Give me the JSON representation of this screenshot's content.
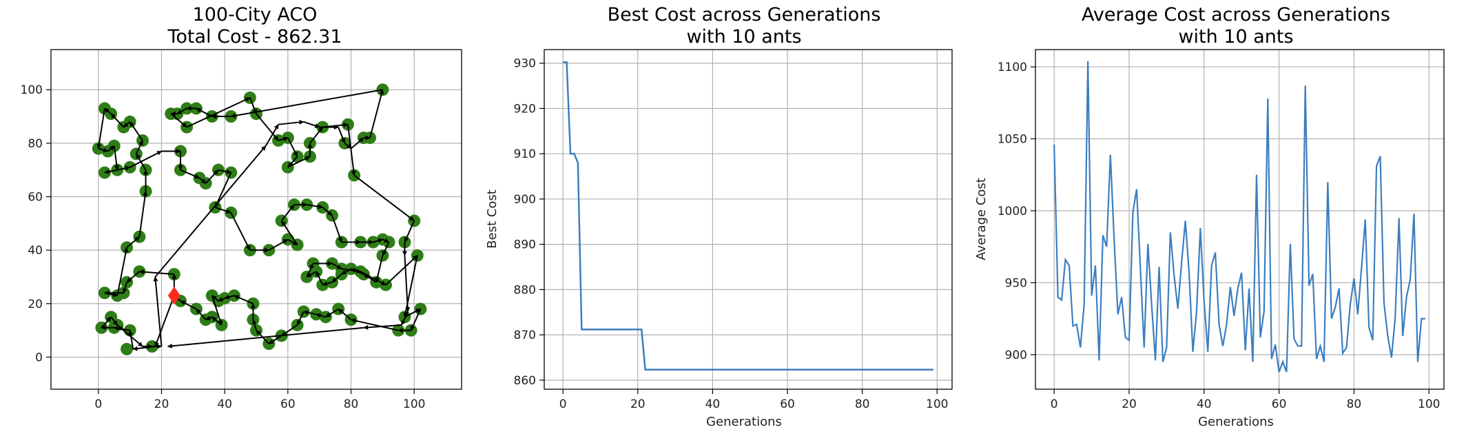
{
  "colors": {
    "city": "#2e7d16",
    "start": "#ff2a1a",
    "tour": "#000000",
    "line": "#3b7ebf",
    "grid": "#b0b0b0",
    "axis": "#000000"
  },
  "chart_data": [
    {
      "type": "scatter",
      "title": "100-City ACO",
      "subtitle": "Total Cost - 862.31",
      "xlabel": "",
      "ylabel": "",
      "xlim": [
        -15,
        115
      ],
      "ylim": [
        -12,
        115
      ],
      "xticks": [
        "0",
        "20",
        "40",
        "60",
        "80",
        "100"
      ],
      "yticks": [
        "0",
        "20",
        "40",
        "60",
        "80",
        "100"
      ],
      "grid": true,
      "start_city": [
        24,
        23
      ],
      "tour": [
        [
          24,
          23
        ],
        [
          24,
          31
        ],
        [
          13,
          32
        ],
        [
          9,
          28
        ],
        [
          8,
          24
        ],
        [
          2,
          24
        ],
        [
          6,
          23
        ],
        [
          9,
          41
        ],
        [
          13,
          45
        ],
        [
          15,
          62
        ],
        [
          15,
          70
        ],
        [
          12,
          76
        ],
        [
          14,
          81
        ],
        [
          10,
          88
        ],
        [
          8,
          86
        ],
        [
          4,
          91
        ],
        [
          2,
          93
        ],
        [
          0,
          78
        ],
        [
          3,
          77
        ],
        [
          5,
          79
        ],
        [
          6,
          70
        ],
        [
          2,
          69
        ],
        [
          10,
          71
        ],
        [
          20,
          77
        ],
        [
          26,
          77
        ],
        [
          26,
          70
        ],
        [
          32,
          67
        ],
        [
          34,
          65
        ],
        [
          38,
          70
        ],
        [
          42,
          69
        ],
        [
          37,
          56
        ],
        [
          42,
          54
        ],
        [
          48,
          40
        ],
        [
          54,
          40
        ],
        [
          60,
          44
        ],
        [
          63,
          42
        ],
        [
          58,
          51
        ],
        [
          62,
          57
        ],
        [
          66,
          57
        ],
        [
          71,
          56
        ],
        [
          74,
          53
        ],
        [
          77,
          43
        ],
        [
          83,
          43
        ],
        [
          87,
          43
        ],
        [
          90,
          44
        ],
        [
          92,
          43
        ],
        [
          90,
          38
        ],
        [
          88,
          28
        ],
        [
          84,
          31
        ],
        [
          80,
          33
        ],
        [
          77,
          31
        ],
        [
          74,
          28
        ],
        [
          71,
          27
        ],
        [
          69,
          32
        ],
        [
          66,
          30
        ],
        [
          68,
          35
        ],
        [
          74,
          35
        ],
        [
          77,
          33
        ],
        [
          83,
          32
        ],
        [
          91,
          27
        ],
        [
          101,
          38
        ],
        [
          97,
          15
        ],
        [
          102,
          18
        ],
        [
          99,
          10
        ],
        [
          95,
          10
        ],
        [
          80,
          14
        ],
        [
          76,
          18
        ],
        [
          72,
          15
        ],
        [
          69,
          16
        ],
        [
          65,
          17
        ],
        [
          63,
          12
        ],
        [
          58,
          8
        ],
        [
          54,
          5
        ],
        [
          50,
          10
        ],
        [
          49,
          14
        ],
        [
          49,
          20
        ],
        [
          43,
          23
        ],
        [
          40,
          22
        ],
        [
          38,
          21
        ],
        [
          36,
          23
        ],
        [
          39,
          12
        ],
        [
          36,
          15
        ],
        [
          34,
          14
        ],
        [
          31,
          18
        ],
        [
          26,
          21
        ],
        [
          24,
          23
        ],
        [
          18,
          4
        ],
        [
          11,
          3
        ],
        [
          10,
          10
        ],
        [
          5,
          11
        ],
        [
          1,
          11
        ],
        [
          4,
          15
        ],
        [
          6,
          12
        ],
        [
          8,
          10
        ],
        [
          14,
          4
        ],
        [
          17,
          4
        ],
        [
          20,
          4
        ],
        [
          18,
          30
        ],
        [
          53,
          79
        ],
        [
          57,
          87
        ],
        [
          65,
          88
        ],
        [
          70,
          86
        ],
        [
          76,
          86
        ],
        [
          78,
          80
        ],
        [
          80,
          78
        ],
        [
          84,
          82
        ],
        [
          86,
          82
        ],
        [
          90,
          100
        ],
        [
          42,
          90
        ],
        [
          36,
          90
        ],
        [
          31,
          93
        ],
        [
          28,
          93
        ],
        [
          25,
          91
        ],
        [
          23,
          91
        ],
        [
          28,
          86
        ],
        [
          48,
          97
        ],
        [
          50,
          91
        ],
        [
          57,
          81
        ],
        [
          60,
          82
        ],
        [
          63,
          75
        ],
        [
          60,
          71
        ],
        [
          67,
          75
        ],
        [
          67,
          80
        ],
        [
          71,
          86
        ],
        [
          79,
          87
        ],
        [
          81,
          68
        ],
        [
          100,
          51
        ],
        [
          97,
          43
        ],
        [
          97,
          38
        ],
        [
          98,
          17
        ],
        [
          96,
          12
        ],
        [
          84,
          11
        ],
        [
          22,
          4
        ]
      ],
      "cities": [
        [
          2,
          93
        ],
        [
          4,
          91
        ],
        [
          10,
          88
        ],
        [
          8,
          86
        ],
        [
          14,
          81
        ],
        [
          12,
          76
        ],
        [
          0,
          78
        ],
        [
          3,
          77
        ],
        [
          5,
          79
        ],
        [
          6,
          70
        ],
        [
          2,
          69
        ],
        [
          10,
          71
        ],
        [
          15,
          70
        ],
        [
          15,
          62
        ],
        [
          13,
          45
        ],
        [
          9,
          41
        ],
        [
          24,
          31
        ],
        [
          13,
          32
        ],
        [
          9,
          28
        ],
        [
          8,
          24
        ],
        [
          2,
          24
        ],
        [
          6,
          23
        ],
        [
          10,
          10
        ],
        [
          5,
          11
        ],
        [
          1,
          11
        ],
        [
          4,
          15
        ],
        [
          6,
          12
        ],
        [
          9,
          3
        ],
        [
          17,
          4
        ],
        [
          26,
          77
        ],
        [
          26,
          70
        ],
        [
          32,
          67
        ],
        [
          34,
          65
        ],
        [
          38,
          70
        ],
        [
          42,
          69
        ],
        [
          37,
          56
        ],
        [
          42,
          54
        ],
        [
          48,
          40
        ],
        [
          54,
          40
        ],
        [
          60,
          44
        ],
        [
          63,
          42
        ],
        [
          58,
          51
        ],
        [
          62,
          57
        ],
        [
          66,
          57
        ],
        [
          71,
          56
        ],
        [
          74,
          53
        ],
        [
          77,
          43
        ],
        [
          83,
          43
        ],
        [
          87,
          43
        ],
        [
          90,
          44
        ],
        [
          92,
          43
        ],
        [
          90,
          38
        ],
        [
          88,
          28
        ],
        [
          84,
          31
        ],
        [
          80,
          33
        ],
        [
          77,
          31
        ],
        [
          74,
          28
        ],
        [
          71,
          27
        ],
        [
          69,
          32
        ],
        [
          66,
          30
        ],
        [
          68,
          35
        ],
        [
          74,
          35
        ],
        [
          77,
          33
        ],
        [
          83,
          32
        ],
        [
          91,
          27
        ],
        [
          101,
          38
        ],
        [
          97,
          15
        ],
        [
          102,
          18
        ],
        [
          99,
          10
        ],
        [
          95,
          10
        ],
        [
          80,
          14
        ],
        [
          76,
          18
        ],
        [
          72,
          15
        ],
        [
          69,
          16
        ],
        [
          65,
          17
        ],
        [
          63,
          12
        ],
        [
          58,
          8
        ],
        [
          54,
          5
        ],
        [
          50,
          10
        ],
        [
          49,
          14
        ],
        [
          49,
          20
        ],
        [
          43,
          23
        ],
        [
          40,
          22
        ],
        [
          38,
          21
        ],
        [
          36,
          23
        ],
        [
          39,
          12
        ],
        [
          36,
          15
        ],
        [
          34,
          14
        ],
        [
          31,
          18
        ],
        [
          26,
          21
        ],
        [
          23,
          91
        ],
        [
          25,
          91
        ],
        [
          28,
          93
        ],
        [
          31,
          93
        ],
        [
          28,
          86
        ],
        [
          36,
          90
        ],
        [
          42,
          90
        ],
        [
          48,
          97
        ],
        [
          50,
          91
        ],
        [
          57,
          81
        ],
        [
          60,
          82
        ],
        [
          63,
          75
        ],
        [
          60,
          71
        ],
        [
          67,
          75
        ],
        [
          67,
          80
        ],
        [
          71,
          86
        ],
        [
          79,
          87
        ],
        [
          81,
          68
        ],
        [
          100,
          51
        ],
        [
          97,
          43
        ],
        [
          90,
          100
        ],
        [
          84,
          82
        ],
        [
          86,
          82
        ],
        [
          78,
          80
        ]
      ]
    },
    {
      "type": "line",
      "title": "Best Cost across Generations",
      "subtitle": "with 10 ants",
      "xlabel": "Generations",
      "ylabel": "Best Cost",
      "xlim": [
        -5,
        104
      ],
      "ylim": [
        858,
        933
      ],
      "xticks": [
        "0",
        "20",
        "40",
        "60",
        "80",
        "100"
      ],
      "yticks": [
        "860",
        "870",
        "880",
        "890",
        "900",
        "910",
        "920",
        "930"
      ],
      "grid": true,
      "x": [
        0,
        1,
        2,
        3,
        4,
        5,
        21,
        22,
        99
      ],
      "values": [
        930.2,
        930.2,
        910,
        910,
        908,
        871.2,
        871.2,
        862.31,
        862.31
      ]
    },
    {
      "type": "line",
      "title": "Average Cost across Generations",
      "subtitle": "with 10 ants",
      "xlabel": "Generations",
      "ylabel": "Average Cost",
      "xlim": [
        -5,
        104
      ],
      "ylim": [
        876,
        1112
      ],
      "xticks": [
        "0",
        "20",
        "40",
        "60",
        "80",
        "100"
      ],
      "yticks": [
        "900",
        "950",
        "1000",
        "1050",
        "1100"
      ],
      "grid": true,
      "values": [
        1046,
        940,
        938,
        966,
        962,
        920,
        921,
        905,
        935,
        1104,
        941,
        962,
        896,
        983,
        975,
        1039,
        980,
        928,
        940,
        912,
        910,
        999,
        1015,
        960,
        905,
        977,
        935,
        896,
        961,
        895,
        905,
        985,
        955,
        932,
        964,
        993,
        957,
        902,
        930,
        988,
        937,
        902,
        962,
        971,
        921,
        906,
        921,
        947,
        927,
        946,
        957,
        903,
        946,
        895,
        1025,
        912,
        930,
        1078,
        897,
        907,
        888,
        895,
        888,
        977,
        911,
        906,
        906,
        1087,
        948,
        956,
        897,
        906,
        895,
        1020,
        925,
        933,
        946,
        901,
        905,
        935,
        953,
        928,
        960,
        994,
        919,
        910,
        1031,
        1038,
        936,
        913,
        898,
        926,
        995,
        913,
        940,
        952,
        998,
        895,
        925,
        925
      ]
    }
  ]
}
